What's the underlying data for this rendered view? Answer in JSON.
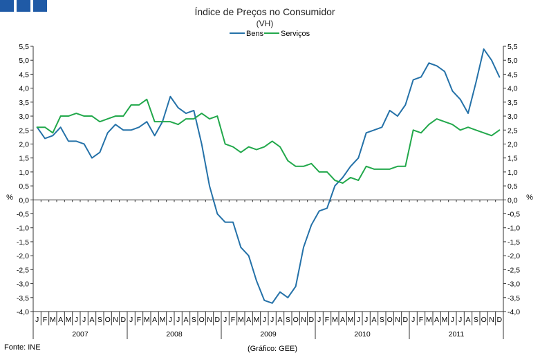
{
  "header": {
    "badge_count": 3,
    "badge_color": "#1f5aa6"
  },
  "footer": {
    "source": "Fonte: INE",
    "credit": "(Gráfico: GEE)"
  },
  "chart_data": {
    "type": "line",
    "title": "Índice de Preços no Consumidor",
    "subtitle": "(VH)",
    "ylabel_left": "%",
    "ylabel_right": "%",
    "ylim": [
      -4.0,
      5.5
    ],
    "yticks": [
      "-4,0",
      "-3,5",
      "-3,0",
      "-2,5",
      "-2,0",
      "-1,5",
      "-1,0",
      "-0,5",
      "0,0",
      "0,5",
      "1,0",
      "1,5",
      "2,0",
      "2,5",
      "3,0",
      "3,5",
      "4,0",
      "4,5",
      "5,0",
      "5,5"
    ],
    "month_labels": [
      "J",
      "F",
      "M",
      "A",
      "M",
      "J",
      "J",
      "A",
      "S",
      "O",
      "N",
      "D"
    ],
    "years": [
      "2007",
      "2008",
      "2009",
      "2010",
      "2011"
    ],
    "legend": {
      "position": "top-center",
      "entries": [
        "Bens",
        "Serviços"
      ]
    },
    "series": [
      {
        "name": "Bens",
        "color": "#2471a8",
        "values": [
          2.6,
          2.2,
          2.3,
          2.6,
          2.1,
          2.1,
          2.0,
          1.5,
          1.7,
          2.4,
          2.7,
          2.5,
          2.5,
          2.6,
          2.8,
          2.3,
          2.8,
          3.7,
          3.3,
          3.1,
          3.2,
          2.0,
          0.5,
          -0.5,
          -0.8,
          -0.8,
          -1.7,
          -2.0,
          -2.9,
          -3.6,
          -3.7,
          -3.3,
          -3.5,
          -3.1,
          -1.7,
          -0.9,
          -0.4,
          -0.3,
          0.5,
          0.8,
          1.2,
          1.5,
          2.4,
          2.5,
          2.6,
          3.2,
          3.0,
          3.4,
          4.3,
          4.4,
          4.9,
          4.8,
          4.6,
          3.9,
          3.6,
          3.1,
          4.2,
          5.4,
          5.0,
          4.4
        ]
      },
      {
        "name": "Serviços",
        "color": "#22a84b",
        "values": [
          2.6,
          2.6,
          2.4,
          3.0,
          3.0,
          3.1,
          3.0,
          3.0,
          2.8,
          2.9,
          3.0,
          3.0,
          3.4,
          3.4,
          3.6,
          2.8,
          2.8,
          2.8,
          2.7,
          2.9,
          2.9,
          3.1,
          2.9,
          3.0,
          2.0,
          1.9,
          1.7,
          1.9,
          1.8,
          1.9,
          2.1,
          1.9,
          1.4,
          1.2,
          1.2,
          1.3,
          1.0,
          1.0,
          0.7,
          0.6,
          0.8,
          0.7,
          1.2,
          1.1,
          1.1,
          1.1,
          1.2,
          1.2,
          2.5,
          2.4,
          2.7,
          2.9,
          2.8,
          2.7,
          2.5,
          2.6,
          2.5,
          2.4,
          2.3,
          2.5
        ]
      }
    ]
  }
}
